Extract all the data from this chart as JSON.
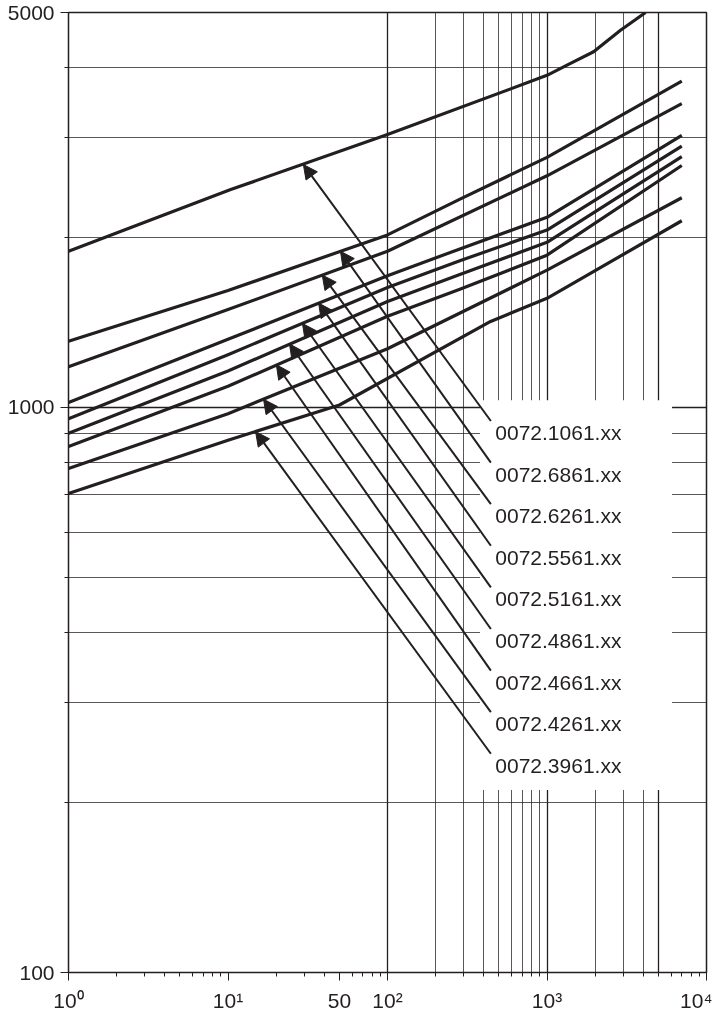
{
  "chart_data": {
    "type": "line",
    "log": "xy",
    "grid": true,
    "marker": "none",
    "line_style": "solid",
    "xlim": [
      1,
      10000
    ],
    "ylim": [
      100,
      5000
    ],
    "xticks": [
      {
        "value": 1,
        "label": "10⁰"
      },
      {
        "value": 10,
        "label": "10¹"
      },
      {
        "value": 50,
        "label": "50"
      },
      {
        "value": 100,
        "label": "10²"
      },
      {
        "value": 1000,
        "label": "10³"
      },
      {
        "value": 10000,
        "label": "10⁴"
      }
    ],
    "yticks": [
      100,
      1000,
      5000
    ],
    "series": [
      {
        "color": "#231f20",
        "x": [
          1,
          10.4,
          100,
          1000,
          1345,
          1960,
          2890,
          4150
        ],
        "values": [
          1890,
          2430,
          3040,
          3870,
          4040,
          4260,
          4650,
          5000
        ]
      },
      {
        "color": "#231f20",
        "x": [
          1,
          10,
          100,
          287,
          1000,
          7000
        ],
        "values": [
          1310,
          1610,
          2020,
          2340,
          2770,
          3780
        ]
      },
      {
        "color": "#231f20",
        "x": [
          1,
          10,
          100,
          1000,
          7000
        ],
        "values": [
          1180,
          1490,
          1890,
          2570,
          3450
        ]
      },
      {
        "color": "#231f20",
        "x": [
          1,
          10,
          100,
          287,
          1000,
          7000
        ],
        "values": [
          1020,
          1320,
          1710,
          1910,
          2170,
          3030
        ]
      },
      {
        "color": "#231f20",
        "x": [
          1,
          10,
          100,
          287,
          1000,
          7000
        ],
        "values": [
          955,
          1240,
          1630,
          1820,
          2060,
          2900
        ]
      },
      {
        "color": "#231f20",
        "x": [
          1,
          10,
          100,
          287,
          1000,
          7000
        ],
        "values": [
          900,
          1160,
          1540,
          1720,
          1960,
          2780
        ]
      },
      {
        "color": "#231f20",
        "x": [
          1,
          10,
          100,
          287,
          1000,
          7000
        ],
        "values": [
          853,
          1090,
          1450,
          1620,
          1860,
          2680
        ]
      },
      {
        "color": "#231f20",
        "x": [
          1,
          10,
          100,
          1000,
          7000
        ],
        "values": [
          780,
          975,
          1270,
          1750,
          2350
        ]
      },
      {
        "color": "#231f20",
        "x": [
          1,
          10,
          50,
          443,
          1000,
          7000
        ],
        "values": [
          704,
          875,
          1010,
          1420,
          1560,
          2140
        ]
      }
    ],
    "annotations": [
      {
        "text": "0072.1061.xx",
        "x": 29.7,
        "y": 2690
      },
      {
        "text": "0072.6861.xx",
        "x": 50.7,
        "y": 1890
      },
      {
        "text": "0072.6261.xx",
        "x": 39,
        "y": 1715
      },
      {
        "text": "0072.5561.xx",
        "x": 37,
        "y": 1530
      },
      {
        "text": "0072.5161.xx",
        "x": 29.3,
        "y": 1408
      },
      {
        "text": "0072.4861.xx",
        "x": 24.3,
        "y": 1295
      },
      {
        "text": "0072.4661.xx",
        "x": 20.1,
        "y": 1190
      },
      {
        "text": "0072.4261.xx",
        "x": 16.7,
        "y": 1034
      },
      {
        "text": "0072.3961.xx",
        "x": 14.9,
        "y": 906
      }
    ]
  }
}
